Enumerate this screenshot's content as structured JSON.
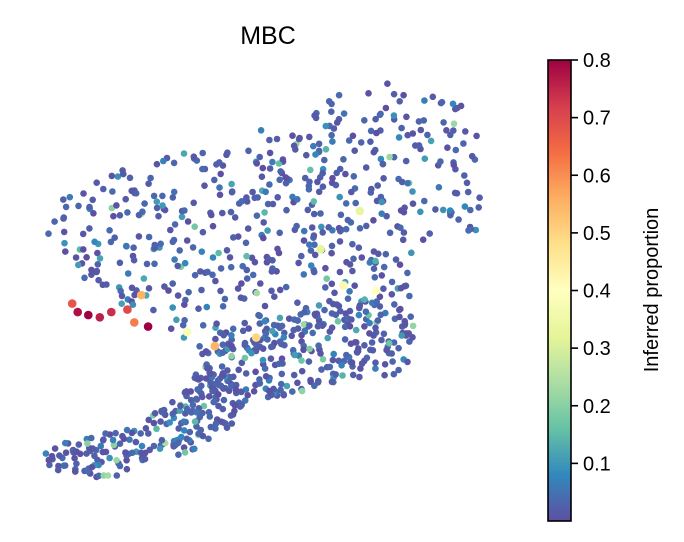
{
  "chart_data": {
    "type": "scatter",
    "title": "MBC",
    "xlabel": "",
    "ylabel": "",
    "axes_visible": false,
    "grid": false,
    "colorbar": {
      "label": "Inferred proportion",
      "colormap": "Spectral_r",
      "range": [
        0.0,
        0.8
      ],
      "ticks": [
        0.1,
        0.2,
        0.3,
        0.4,
        0.5,
        0.6,
        0.7,
        0.8
      ],
      "tick_labels": [
        "0.1",
        "0.2",
        "0.3",
        "0.4",
        "0.5",
        "0.6",
        "0.7",
        "0.8"
      ],
      "stops": [
        "#5e4fa2",
        "#3288bd",
        "#66c2a5",
        "#abdda4",
        "#e6f598",
        "#ffffbf",
        "#fee08b",
        "#fdae61",
        "#f46d43",
        "#d53e4f",
        "#9e0142"
      ]
    },
    "highlighted_points": [
      {
        "x": 0.82,
        "y": 4.42,
        "value": 0.78
      },
      {
        "x": 1.05,
        "y": 4.35,
        "value": 0.8
      },
      {
        "x": 1.3,
        "y": 4.3,
        "value": 0.76
      },
      {
        "x": 1.55,
        "y": 4.42,
        "value": 0.74
      },
      {
        "x": 2.05,
        "y": 4.18,
        "value": 0.62
      },
      {
        "x": 2.35,
        "y": 4.08,
        "value": 0.8
      },
      {
        "x": 0.7,
        "y": 4.62,
        "value": 0.68
      },
      {
        "x": 1.9,
        "y": 4.48,
        "value": 0.7
      },
      {
        "x": 2.2,
        "y": 4.82,
        "value": 0.55
      },
      {
        "x": 3.8,
        "y": 3.62,
        "value": 0.55
      },
      {
        "x": 4.7,
        "y": 3.82,
        "value": 0.5
      },
      {
        "x": 6.6,
        "y": 5.05,
        "value": 0.42
      },
      {
        "x": 3.2,
        "y": 3.95,
        "value": 0.38
      },
      {
        "x": 6.95,
        "y": 6.8,
        "value": 0.33
      },
      {
        "x": 7.3,
        "y": 4.92,
        "value": 0.4
      },
      {
        "x": 6.1,
        "y": 5.9,
        "value": 0.32
      }
    ],
    "point_summary": {
      "n_points_approx": 1050,
      "dominant_value_range": [
        0.0,
        0.15
      ]
    }
  }
}
